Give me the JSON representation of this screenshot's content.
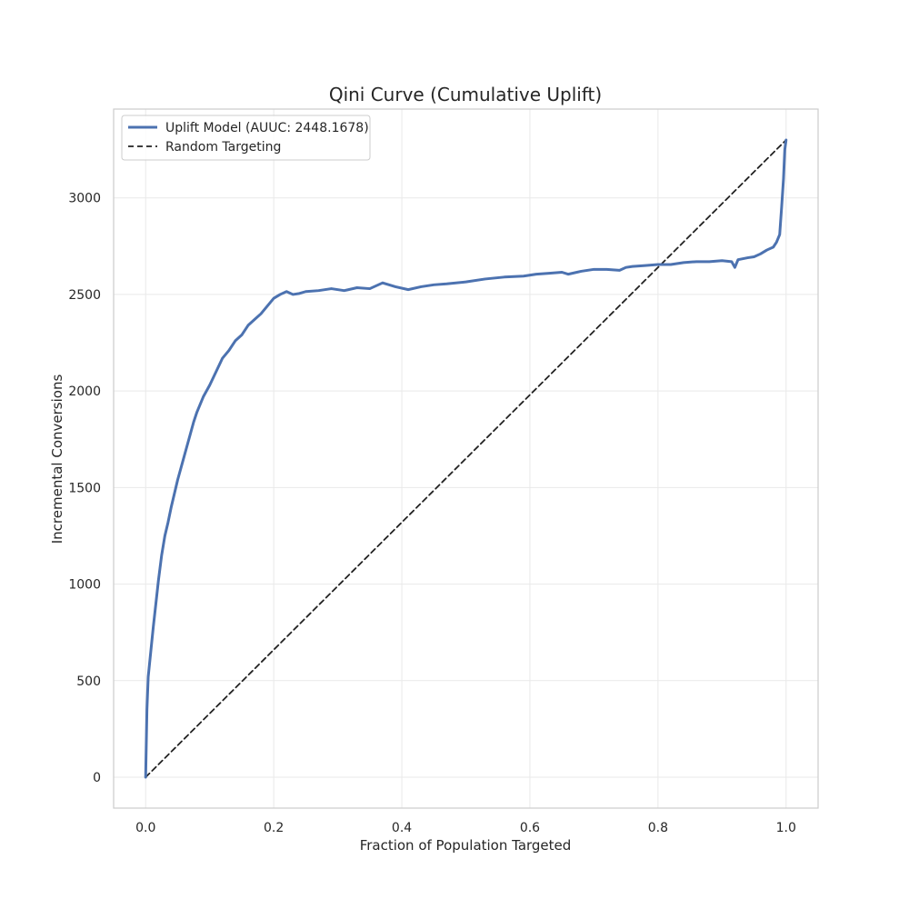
{
  "chart_data": {
    "type": "line",
    "title": "Qini Curve (Cumulative Uplift)",
    "xlabel": "Fraction of Population Targeted",
    "ylabel": "Incremental Conversions",
    "xlim": [
      -0.05,
      1.05
    ],
    "ylim": [
      -160,
      3460
    ],
    "xticks": [
      0.0,
      0.2,
      0.4,
      0.6,
      0.8,
      1.0
    ],
    "xtick_labels": [
      "0.0",
      "0.2",
      "0.4",
      "0.6",
      "0.8",
      "1.0"
    ],
    "yticks": [
      0,
      500,
      1000,
      1500,
      2000,
      2500,
      3000
    ],
    "ytick_labels": [
      "0",
      "500",
      "1000",
      "1500",
      "2000",
      "2500",
      "3000"
    ],
    "grid": true,
    "legend_position": "top-left",
    "series": [
      {
        "name": "Uplift Model (AUUC: 2448.1678)",
        "color": "#4c72b0",
        "style": "solid",
        "x": [
          0.0,
          0.002,
          0.004,
          0.008,
          0.012,
          0.016,
          0.02,
          0.025,
          0.03,
          0.035,
          0.04,
          0.045,
          0.05,
          0.055,
          0.06,
          0.065,
          0.07,
          0.075,
          0.08,
          0.085,
          0.09,
          0.095,
          0.1,
          0.11,
          0.12,
          0.13,
          0.14,
          0.15,
          0.16,
          0.17,
          0.18,
          0.19,
          0.2,
          0.21,
          0.22,
          0.23,
          0.24,
          0.25,
          0.27,
          0.29,
          0.31,
          0.33,
          0.35,
          0.37,
          0.39,
          0.41,
          0.43,
          0.45,
          0.47,
          0.5,
          0.53,
          0.56,
          0.59,
          0.61,
          0.63,
          0.65,
          0.66,
          0.68,
          0.7,
          0.72,
          0.74,
          0.75,
          0.76,
          0.78,
          0.8,
          0.82,
          0.84,
          0.86,
          0.88,
          0.9,
          0.915,
          0.92,
          0.925,
          0.94,
          0.95,
          0.96,
          0.97,
          0.98,
          0.985,
          0.99,
          0.993,
          0.996,
          0.998,
          1.0
        ],
        "y": [
          0,
          350,
          520,
          650,
          780,
          900,
          1020,
          1150,
          1250,
          1320,
          1400,
          1470,
          1540,
          1600,
          1660,
          1720,
          1780,
          1840,
          1890,
          1930,
          1970,
          2000,
          2030,
          2100,
          2170,
          2210,
          2260,
          2290,
          2340,
          2370,
          2400,
          2440,
          2480,
          2500,
          2515,
          2500,
          2505,
          2515,
          2520,
          2530,
          2520,
          2535,
          2530,
          2560,
          2540,
          2525,
          2540,
          2550,
          2555,
          2565,
          2580,
          2590,
          2595,
          2605,
          2610,
          2615,
          2605,
          2620,
          2630,
          2630,
          2625,
          2640,
          2645,
          2650,
          2655,
          2655,
          2665,
          2670,
          2670,
          2675,
          2670,
          2640,
          2680,
          2690,
          2695,
          2710,
          2730,
          2745,
          2770,
          2810,
          2950,
          3100,
          3250,
          3300
        ]
      },
      {
        "name": "Random Targeting",
        "color": "#222222",
        "style": "dashed",
        "x": [
          0.0,
          1.0
        ],
        "y": [
          0,
          3300
        ]
      }
    ]
  }
}
